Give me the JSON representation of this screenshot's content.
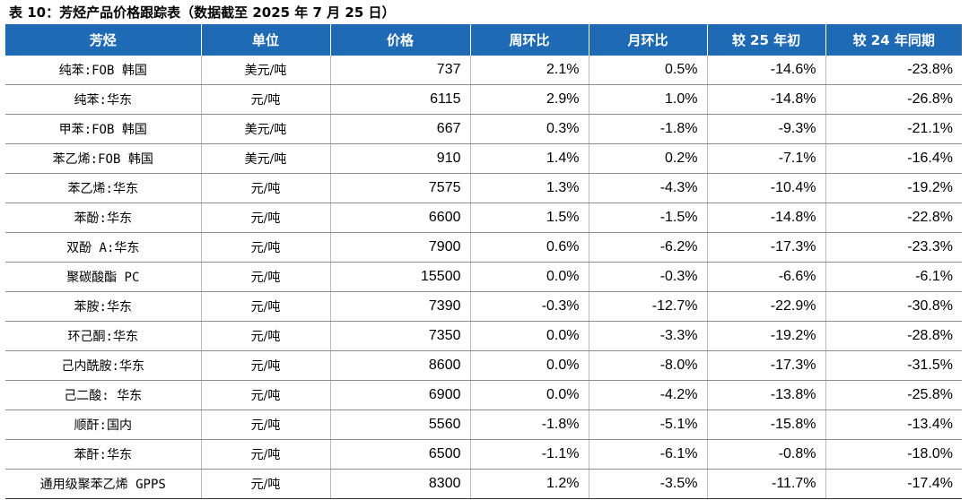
{
  "caption": "表 10：芳烃产品价格跟踪表（数据截至 2025 年 7 月 25 日）",
  "colors": {
    "header_bg": "#1f6ab5",
    "header_text": "#ffffff"
  },
  "headers": [
    "芳烃",
    "单位",
    "价格",
    "周环比",
    "月环比",
    "较 25 年初",
    "较 24 年同期"
  ],
  "rows": [
    {
      "product": "纯苯:FOB 韩国",
      "unit": "美元/吨",
      "price": "737",
      "wow": "2.1%",
      "mom": "0.5%",
      "ytd": "-14.6%",
      "yoy": "-23.8%"
    },
    {
      "product": "纯苯:华东",
      "unit": "元/吨",
      "price": "6115",
      "wow": "2.9%",
      "mom": "1.0%",
      "ytd": "-14.8%",
      "yoy": "-26.8%"
    },
    {
      "product": "甲苯:FOB 韩国",
      "unit": "美元/吨",
      "price": "667",
      "wow": "0.3%",
      "mom": "-1.8%",
      "ytd": "-9.3%",
      "yoy": "-21.1%"
    },
    {
      "product": "苯乙烯:FOB 韩国",
      "unit": "美元/吨",
      "price": "910",
      "wow": "1.4%",
      "mom": "0.2%",
      "ytd": "-7.1%",
      "yoy": "-16.4%"
    },
    {
      "product": "苯乙烯:华东",
      "unit": "元/吨",
      "price": "7575",
      "wow": "1.3%",
      "mom": "-4.3%",
      "ytd": "-10.4%",
      "yoy": "-19.2%"
    },
    {
      "product": "苯酚:华东",
      "unit": "元/吨",
      "price": "6600",
      "wow": "1.5%",
      "mom": "-1.5%",
      "ytd": "-14.8%",
      "yoy": "-22.8%"
    },
    {
      "product": "双酚 A:华东",
      "unit": "元/吨",
      "price": "7900",
      "wow": "0.6%",
      "mom": "-6.2%",
      "ytd": "-17.3%",
      "yoy": "-23.3%"
    },
    {
      "product": "聚碳酸酯 PC",
      "unit": "元/吨",
      "price": "15500",
      "wow": "0.0%",
      "mom": "-0.3%",
      "ytd": "-6.6%",
      "yoy": "-6.1%"
    },
    {
      "product": "苯胺:华东",
      "unit": "元/吨",
      "price": "7390",
      "wow": "-0.3%",
      "mom": "-12.7%",
      "ytd": "-22.9%",
      "yoy": "-30.8%"
    },
    {
      "product": "环己酮:华东",
      "unit": "元/吨",
      "price": "7350",
      "wow": "0.0%",
      "mom": "-3.3%",
      "ytd": "-19.2%",
      "yoy": "-28.8%"
    },
    {
      "product": "己内酰胺:华东",
      "unit": "元/吨",
      "price": "8600",
      "wow": "0.0%",
      "mom": "-8.0%",
      "ytd": "-17.3%",
      "yoy": "-31.5%"
    },
    {
      "product": "己二酸: 华东",
      "unit": "元/吨",
      "price": "6900",
      "wow": "0.0%",
      "mom": "-4.2%",
      "ytd": "-13.8%",
      "yoy": "-25.8%"
    },
    {
      "product": "顺酐:国内",
      "unit": "元/吨",
      "price": "5560",
      "wow": "-1.8%",
      "mom": "-5.1%",
      "ytd": "-15.8%",
      "yoy": "-13.4%"
    },
    {
      "product": "苯酐:华东",
      "unit": "元/吨",
      "price": "6500",
      "wow": "-1.1%",
      "mom": "-6.1%",
      "ytd": "-0.8%",
      "yoy": "-18.0%"
    },
    {
      "product": "通用级聚苯乙烯 GPPS",
      "unit": "元/吨",
      "price": "8300",
      "wow": "1.2%",
      "mom": "-3.5%",
      "ytd": "-11.7%",
      "yoy": "-17.4%"
    }
  ]
}
